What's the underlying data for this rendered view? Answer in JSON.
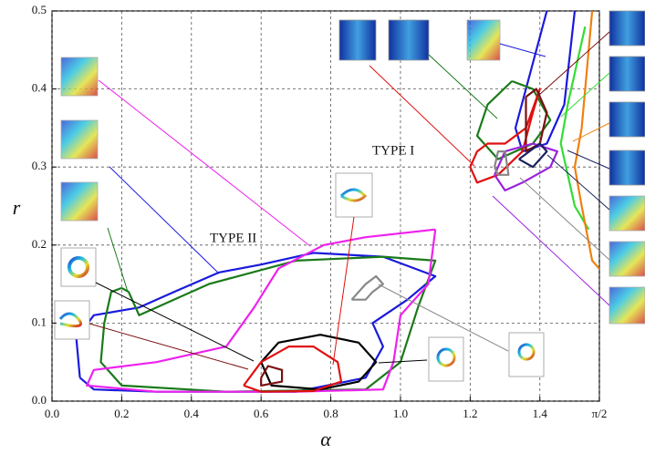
{
  "chart_data": {
    "type": "line",
    "xlabel": "α",
    "ylabel": "r",
    "annotations": [
      "TYPE I",
      "TYPE II"
    ],
    "xlim": [
      0,
      1.5708
    ],
    "ylim": [
      0,
      0.5
    ],
    "xticks": [
      {
        "value": 0,
        "label": "0.0"
      },
      0.2,
      0.4,
      0.6,
      0.8,
      {
        "value": 1,
        "label": "1.0"
      },
      1.2,
      1.4,
      {
        "value": 1.5708,
        "label": "π/2"
      }
    ],
    "yticks": [
      {
        "value": 0,
        "label": "0.0"
      },
      0.1,
      0.2,
      0.3,
      0.4,
      0.5
    ],
    "grid": true,
    "series": [
      {
        "color": "#1a1adc",
        "x": [
          0.08,
          0.07,
          0.12,
          0.25,
          0.35,
          0.48,
          0.6,
          0.75,
          0.95,
          1.1,
          1.02,
          0.92,
          0.95,
          0.9,
          0.7,
          0.3,
          0.12,
          0.08
        ],
        "values": [
          0.03,
          0.08,
          0.11,
          0.12,
          0.14,
          0.165,
          0.175,
          0.19,
          0.185,
          0.16,
          0.13,
          0.1,
          0.07,
          0.03,
          0.012,
          0.012,
          0.015,
          0.03
        ]
      },
      {
        "color": "#1a7a1a",
        "x": [
          0.2,
          0.17,
          0.15,
          0.14,
          0.2,
          0.5,
          0.9,
          1.0,
          1.05,
          1.1,
          0.95,
          0.7,
          0.45,
          0.3,
          0.25,
          0.22,
          0.2
        ],
        "values": [
          0.145,
          0.14,
          0.1,
          0.05,
          0.02,
          0.012,
          0.015,
          0.05,
          0.12,
          0.18,
          0.185,
          0.18,
          0.15,
          0.12,
          0.11,
          0.14,
          0.145
        ]
      },
      {
        "color": "#ee22ee",
        "x": [
          1.1,
          0.9,
          0.78,
          0.65,
          0.58,
          0.5,
          0.3,
          0.12,
          0.1,
          0.3,
          0.7,
          0.95,
          0.98,
          1.0,
          1.08,
          1.1
        ],
        "values": [
          0.22,
          0.21,
          0.2,
          0.17,
          0.12,
          0.07,
          0.05,
          0.04,
          0.02,
          0.012,
          0.012,
          0.015,
          0.05,
          0.11,
          0.15,
          0.22
        ]
      },
      {
        "color": "#000000",
        "x": [
          0.6,
          0.65,
          0.77,
          0.88,
          0.93,
          0.88,
          0.77,
          0.63,
          0.6
        ],
        "values": [
          0.05,
          0.075,
          0.085,
          0.075,
          0.05,
          0.025,
          0.015,
          0.02,
          0.05
        ]
      },
      {
        "color": "#e01010",
        "x": [
          0.55,
          0.6,
          0.68,
          0.75,
          0.82,
          0.83,
          0.75,
          0.6,
          0.55
        ],
        "values": [
          0.02,
          0.05,
          0.07,
          0.07,
          0.05,
          0.025,
          0.013,
          0.012,
          0.02
        ]
      },
      {
        "color": "#7a1010",
        "x": [
          0.6,
          0.62,
          0.66,
          0.66,
          0.6,
          0.6
        ],
        "values": [
          0.03,
          0.045,
          0.04,
          0.025,
          0.02,
          0.03
        ]
      },
      {
        "color": "#888888",
        "x": [
          0.86,
          0.9,
          0.93,
          0.95,
          0.92,
          0.9,
          0.86
        ],
        "values": [
          0.13,
          0.15,
          0.16,
          0.15,
          0.14,
          0.13,
          0.13
        ]
      },
      {
        "color": "#1a1adc",
        "x": [
          1.42,
          1.36,
          1.33,
          1.35,
          1.42,
          1.47,
          1.5
        ],
        "values": [
          0.5,
          0.4,
          0.35,
          0.32,
          0.33,
          0.38,
          0.5
        ]
      },
      {
        "color": "#1a7a1a",
        "x": [
          1.32,
          1.25,
          1.22,
          1.28,
          1.38,
          1.43,
          1.38,
          1.32
        ],
        "values": [
          0.41,
          0.38,
          0.34,
          0.31,
          0.33,
          0.36,
          0.4,
          0.41
        ]
      },
      {
        "color": "#33dd33",
        "x": [
          1.53,
          1.48,
          1.46,
          1.5,
          1.54
        ],
        "values": [
          0.48,
          0.38,
          0.33,
          0.25,
          0.22
        ]
      },
      {
        "color": "#f08010",
        "x": [
          1.55,
          1.52,
          1.5,
          1.52,
          1.55,
          1.57
        ],
        "values": [
          0.5,
          0.35,
          0.3,
          0.25,
          0.18,
          0.17
        ]
      },
      {
        "color": "#e01010",
        "x": [
          1.2,
          1.22,
          1.28,
          1.35,
          1.38,
          1.4,
          1.36,
          1.3,
          1.25,
          1.22,
          1.2
        ],
        "values": [
          0.3,
          0.28,
          0.29,
          0.32,
          0.37,
          0.4,
          0.35,
          0.33,
          0.33,
          0.32,
          0.3
        ]
      },
      {
        "color": "#7a1010",
        "x": [
          1.36,
          1.39,
          1.42,
          1.4,
          1.36,
          1.36
        ],
        "values": [
          0.39,
          0.4,
          0.37,
          0.33,
          0.32,
          0.39
        ]
      },
      {
        "color": "#9a22dd",
        "x": [
          1.27,
          1.3,
          1.38,
          1.45,
          1.43,
          1.35,
          1.3,
          1.27
        ],
        "values": [
          0.29,
          0.32,
          0.33,
          0.32,
          0.3,
          0.28,
          0.27,
          0.29
        ]
      },
      {
        "color": "#888888",
        "x": [
          1.27,
          1.28,
          1.3,
          1.31,
          1.28,
          1.27
        ],
        "values": [
          0.3,
          0.32,
          0.32,
          0.29,
          0.29,
          0.3
        ]
      },
      {
        "color": "#1a2060",
        "x": [
          1.34,
          1.38,
          1.42,
          1.4,
          1.34
        ],
        "values": [
          0.31,
          0.3,
          0.32,
          0.33,
          0.31
        ]
      }
    ]
  }
}
